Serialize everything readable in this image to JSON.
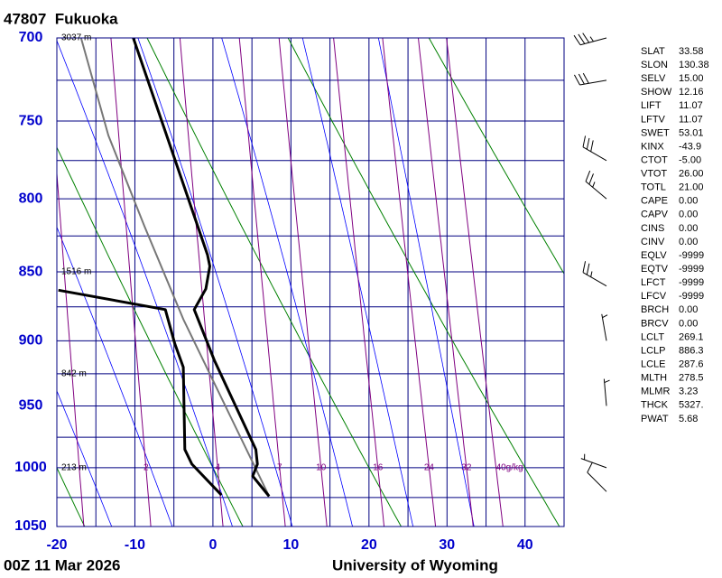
{
  "title": "47807  Fukuoka",
  "footer_left": "00Z 11 Mar 2026",
  "footer_right": "University of Wyoming",
  "chart_data": {
    "type": "skewt",
    "xlim": [
      -20,
      45
    ],
    "ylim": [
      1050,
      700
    ],
    "log_y": true,
    "xticks": [
      -20,
      -10,
      0,
      10,
      20,
      30,
      40
    ],
    "yticks": [
      700,
      750,
      800,
      850,
      900,
      950,
      1000,
      1050
    ],
    "x_grid": [
      -20,
      -15,
      -10,
      -5,
      0,
      5,
      10,
      15,
      20,
      25,
      30,
      35,
      40,
      45
    ],
    "y_grid": [
      700,
      725,
      750,
      775,
      800,
      825,
      850,
      875,
      900,
      925,
      950,
      975,
      1000,
      1025,
      1050
    ],
    "grid_color": "#000080",
    "dry_adiabats": [
      -40,
      -20,
      0,
      20,
      40,
      60,
      80,
      100
    ],
    "dry_color": "#008000",
    "moist_adiabats": [
      -16,
      -8,
      0,
      8,
      16,
      24,
      32
    ],
    "moist_color": "#0000ff",
    "mixing_ratios": [
      1,
      2,
      4,
      7,
      10,
      16,
      24,
      32,
      40
    ],
    "mixing_ratio_labels": [
      null,
      "2",
      "4",
      "7",
      "10",
      "16",
      "24",
      "32",
      "40g/kg"
    ],
    "mixing_color": "#800080",
    "heights": [
      {
        "pressure": 700,
        "label": "3037 m"
      },
      {
        "pressure": 850,
        "label": "1516 m"
      },
      {
        "pressure": 925,
        "label": "842 m"
      },
      {
        "pressure": 1000,
        "label": "213 m"
      }
    ],
    "temperature": {
      "color": "#000000",
      "pressure": [
        700,
        838,
        846,
        862,
        877,
        915,
        985,
        997,
        1007,
        1024
      ],
      "values": [
        -10.2,
        -0.7,
        -0.4,
        -0.9,
        -2.4,
        0.2,
        5.5,
        5.7,
        5.1,
        7.2
      ]
    },
    "dewpoint": {
      "color": "#000000",
      "pressure": [
        863,
        877,
        902,
        920,
        985,
        997,
        1023
      ],
      "values": [
        -19.8,
        -6.1,
        -4.9,
        -3.8,
        -3.6,
        -2.7,
        1.1
      ]
    },
    "parcel": {
      "color": "#777777",
      "pressure": [
        1024,
        884,
        818,
        759,
        700
      ],
      "values": [
        7.2,
        -3.8,
        -8.8,
        -13.4,
        -16.9
      ]
    },
    "wind": {
      "pressure": [
        700,
        725,
        775,
        800,
        860,
        900,
        950,
        1000,
        1020
      ],
      "direction": [
        255,
        260,
        300,
        310,
        300,
        350,
        355,
        290,
        315
      ],
      "speed": [
        35,
        30,
        30,
        25,
        25,
        5,
        5,
        5,
        10
      ]
    }
  },
  "indices": [
    [
      "SLAT",
      "33.58"
    ],
    [
      "SLON",
      "130.38"
    ],
    [
      "SELV",
      "15.00"
    ],
    [
      "SHOW",
      "12.16"
    ],
    [
      "LIFT",
      "11.07"
    ],
    [
      "LFTV",
      "11.07"
    ],
    [
      "SWET",
      "53.01"
    ],
    [
      "KINX",
      "-43.9"
    ],
    [
      "CTOT",
      "-5.00"
    ],
    [
      "VTOT",
      "26.00"
    ],
    [
      "TOTL",
      "21.00"
    ],
    [
      "CAPE",
      "0.00"
    ],
    [
      "CAPV",
      "0.00"
    ],
    [
      "CINS",
      "0.00"
    ],
    [
      "CINV",
      "0.00"
    ],
    [
      "EQLV",
      "-9999"
    ],
    [
      "EQTV",
      "-9999"
    ],
    [
      "LFCT",
      "-9999"
    ],
    [
      "LFCV",
      "-9999"
    ],
    [
      "BRCH",
      "0.00"
    ],
    [
      "BRCV",
      "0.00"
    ],
    [
      "LCLT",
      "269.1"
    ],
    [
      "LCLP",
      "886.3"
    ],
    [
      "LCLE",
      "287.6"
    ],
    [
      "MLTH",
      "278.5"
    ],
    [
      "MLMR",
      "3.23"
    ],
    [
      "THCK",
      "5327."
    ],
    [
      "PWAT",
      "5.68"
    ]
  ]
}
